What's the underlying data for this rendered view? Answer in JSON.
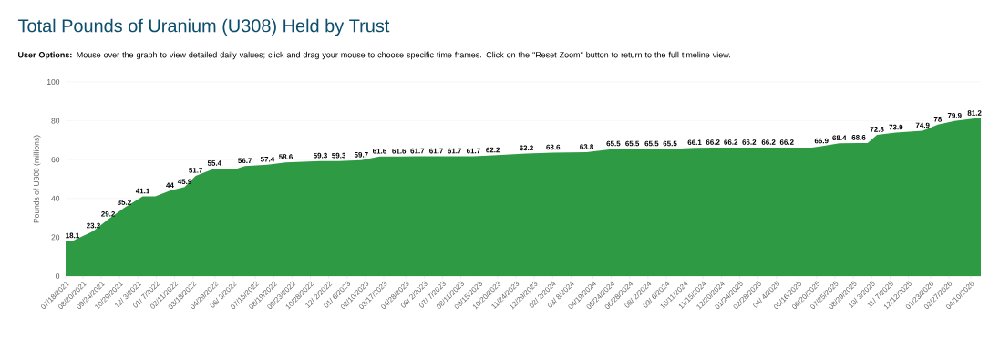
{
  "chart_data": {
    "type": "area",
    "title": "Total Pounds of Uranium (U308) Held by Trust",
    "subtitle": "**User Options:** Mouse over the graph to view detailed daily values; click and drag your mouse to choose specific time frames. Click on the \"Reset Zoom\" button to return to the full timeline view.",
    "ylabel": "Pounds of U308 (millions)",
    "color": "#2f9a44",
    "x": [
      "2021-07-18",
      "2021-07-31",
      "2021-09-09",
      "2021-10-07",
      "2021-11-07",
      "2021-12-12",
      "2022-01-05",
      "2022-02-02",
      "2022-03-02",
      "2022-03-23",
      "2022-04-28",
      "2022-06-10",
      "2022-06-25",
      "2022-08-07",
      "2022-09-11",
      "2022-11-16",
      "2022-12-21",
      "2023-02-02",
      "2023-03-09",
      "2023-04-15",
      "2023-05-20",
      "2023-06-25",
      "2023-07-30",
      "2023-09-04",
      "2023-10-11",
      "2023-12-14",
      "2024-02-03",
      "2024-04-07",
      "2024-05-28",
      "2024-07-03",
      "2024-08-09",
      "2024-09-13",
      "2024-10-30",
      "2024-12-04",
      "2025-01-07",
      "2025-02-11",
      "2025-03-20",
      "2025-04-24",
      "2025-06-10",
      "2025-06-29",
      "2025-08-02",
      "2025-09-08",
      "2025-09-25",
      "2025-10-13",
      "2025-11-18",
      "2026-01-08",
      "2026-02-06",
      "2026-03-10",
      "2026-04-17",
      "2026-04-29"
    ],
    "values": [
      18.1,
      18.1,
      23.2,
      29.2,
      35.2,
      41.1,
      41.1,
      44,
      45.9,
      51.7,
      55.4,
      55.4,
      56.7,
      57.4,
      58.6,
      59.3,
      59.3,
      59.7,
      61.6,
      61.6,
      61.7,
      61.7,
      61.7,
      61.7,
      62.2,
      63.2,
      63.6,
      63.8,
      65.5,
      65.5,
      65.5,
      65.5,
      66.1,
      66.2,
      66.2,
      66.2,
      66.2,
      66.2,
      66.2,
      66.9,
      68.4,
      68.6,
      68.6,
      72.8,
      73.9,
      74.9,
      78,
      79.9,
      81.2,
      81.2
    ],
    "value_labels": [
      null,
      "18.1",
      "23.2",
      "29.2",
      "35.2",
      "41.1",
      null,
      "44",
      "45.9",
      "51.7",
      "55.4",
      null,
      "56.7",
      "57.4",
      "58.6",
      "59.3",
      "59.3",
      "59.7",
      "61.6",
      "61.6",
      "61.7",
      "61.7",
      "61.7",
      "61.7",
      "62.2",
      "63.2",
      "63.6",
      "63.8",
      "65.5",
      "65.5",
      "65.5",
      "65.5",
      "66.1",
      "66.2",
      "66.2",
      "66.2",
      "66.2",
      "66.2",
      null,
      "66.9",
      "68.4",
      "68.6",
      null,
      "72.8",
      "73.9",
      "74.9",
      "78",
      "79.9",
      "81.2",
      null
    ],
    "xlim": [
      "2021-07-18",
      "2026-04-29"
    ],
    "xticks": [
      {
        "value": "2021-07-18",
        "label": "07/18/2021"
      },
      {
        "value": "2021-08-20",
        "label": "08/20/2021"
      },
      {
        "value": "2021-09-24",
        "label": "09/24/2021"
      },
      {
        "value": "2021-10-29",
        "label": "10/29/2021"
      },
      {
        "value": "2021-12-03",
        "label": "12/ 3/2021"
      },
      {
        "value": "2022-01-07",
        "label": "01/ 7/2022"
      },
      {
        "value": "2022-02-11",
        "label": "02/11/2022"
      },
      {
        "value": "2022-03-18",
        "label": "03/18/2022"
      },
      {
        "value": "2022-04-29",
        "label": "04/29/2022"
      },
      {
        "value": "2022-06-03",
        "label": "06/ 3/2022"
      },
      {
        "value": "2022-07-15",
        "label": "07/15/2022"
      },
      {
        "value": "2022-08-19",
        "label": "08/19/2022"
      },
      {
        "value": "2022-09-23",
        "label": "09/23/2022"
      },
      {
        "value": "2022-10-28",
        "label": "10/28/2022"
      },
      {
        "value": "2022-12-02",
        "label": "12/ 2/2022"
      },
      {
        "value": "2023-01-06",
        "label": "01/ 6/2023"
      },
      {
        "value": "2023-02-10",
        "label": "02/10/2023"
      },
      {
        "value": "2023-03-17",
        "label": "03/17/2023"
      },
      {
        "value": "2023-04-28",
        "label": "04/28/2023"
      },
      {
        "value": "2023-06-02",
        "label": "06/ 2/2023"
      },
      {
        "value": "2023-07-07",
        "label": "07/ 7/2023"
      },
      {
        "value": "2023-08-11",
        "label": "08/11/2023"
      },
      {
        "value": "2023-09-15",
        "label": "09/15/2023"
      },
      {
        "value": "2023-10-20",
        "label": "10/20/2023"
      },
      {
        "value": "2023-11-24",
        "label": "11/24/2023"
      },
      {
        "value": "2023-12-29",
        "label": "12/29/2023"
      },
      {
        "value": "2024-02-02",
        "label": "02/ 2/2024"
      },
      {
        "value": "2024-03-08",
        "label": "03/ 8/2024"
      },
      {
        "value": "2024-04-19",
        "label": "04/19/2024"
      },
      {
        "value": "2024-05-24",
        "label": "05/24/2024"
      },
      {
        "value": "2024-06-28",
        "label": "06/28/2024"
      },
      {
        "value": "2024-08-02",
        "label": "08/ 2/2024"
      },
      {
        "value": "2024-09-06",
        "label": "09/ 6/2024"
      },
      {
        "value": "2024-10-11",
        "label": "10/11/2024"
      },
      {
        "value": "2024-11-15",
        "label": "11/15/2024"
      },
      {
        "value": "2024-12-20",
        "label": "12/20/2024"
      },
      {
        "value": "2025-01-24",
        "label": "01/24/2025"
      },
      {
        "value": "2025-02-28",
        "label": "02/28/2025"
      },
      {
        "value": "2025-04-04",
        "label": "04/ 4/2025"
      },
      {
        "value": "2025-05-16",
        "label": "05/16/2025"
      },
      {
        "value": "2025-06-20",
        "label": "06/20/2025"
      },
      {
        "value": "2025-07-25",
        "label": "07/25/2025"
      },
      {
        "value": "2025-08-29",
        "label": "08/29/2025"
      },
      {
        "value": "2025-10-03",
        "label": "10/ 3/2025"
      },
      {
        "value": "2025-11-07",
        "label": "11/ 7/2025"
      },
      {
        "value": "2025-12-12",
        "label": "12/12/2025"
      },
      {
        "value": "2026-01-23",
        "label": "01/23/2026"
      },
      {
        "value": "2026-02-27",
        "label": "02/27/2026"
      },
      {
        "value": "2026-04-10",
        "label": "04/10/2026"
      }
    ],
    "ylim": [
      0,
      100
    ],
    "yticks": [
      0,
      20,
      40,
      60,
      80,
      100
    ],
    "grid": "y"
  }
}
